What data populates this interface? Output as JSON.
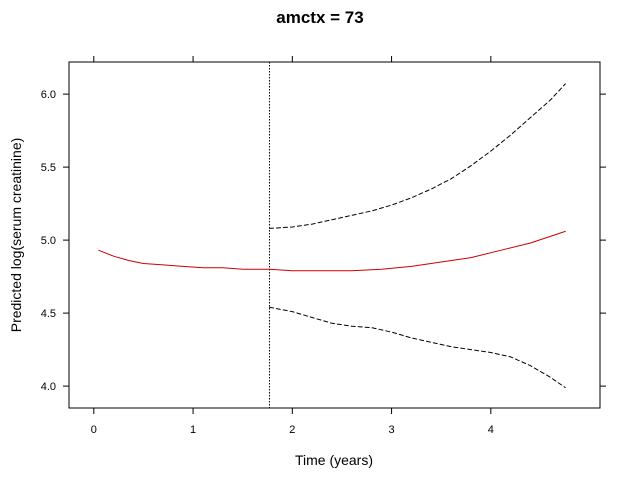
{
  "chart_data": {
    "type": "line",
    "title": "amctx = 73",
    "xlabel": "Time (years)",
    "ylabel": "Predicted log(serum creatinine)",
    "xlim": [
      -0.25,
      5.1
    ],
    "ylim": [
      3.85,
      6.22
    ],
    "x_ticks": [
      0,
      1,
      2,
      3,
      4
    ],
    "y_ticks": [
      4.0,
      4.5,
      5.0,
      5.5,
      6.0
    ],
    "x_tick_labels": [
      "0",
      "1",
      "2",
      "3",
      "4"
    ],
    "y_tick_labels": [
      "4.0",
      "4.5",
      "5.0",
      "5.5",
      "6.0"
    ],
    "grid": false,
    "vertical_reference_line": {
      "x": 1.77,
      "style": "dotted",
      "color": "#000000"
    },
    "series": [
      {
        "role": "prediction",
        "color": "#cc0000",
        "dash": "solid",
        "x": [
          0.05,
          0.2,
          0.35,
          0.5,
          0.7,
          0.9,
          1.1,
          1.3,
          1.5,
          1.77,
          2.0,
          2.3,
          2.6,
          2.9,
          3.2,
          3.5,
          3.8,
          4.1,
          4.4,
          4.75
        ],
        "y": [
          4.93,
          4.89,
          4.86,
          4.84,
          4.83,
          4.82,
          4.81,
          4.81,
          4.8,
          4.8,
          4.79,
          4.79,
          4.79,
          4.8,
          4.82,
          4.85,
          4.88,
          4.93,
          4.98,
          5.06
        ]
      },
      {
        "role": "upper-bound",
        "color": "#000000",
        "dash": "dashed",
        "x": [
          1.77,
          2.0,
          2.2,
          2.4,
          2.6,
          2.8,
          3.0,
          3.2,
          3.4,
          3.6,
          3.8,
          4.0,
          4.2,
          4.4,
          4.6,
          4.75
        ],
        "y": [
          5.08,
          5.09,
          5.11,
          5.14,
          5.17,
          5.2,
          5.24,
          5.29,
          5.35,
          5.42,
          5.51,
          5.61,
          5.72,
          5.84,
          5.96,
          6.07
        ]
      },
      {
        "role": "lower-bound",
        "color": "#000000",
        "dash": "dashed",
        "x": [
          1.77,
          2.0,
          2.2,
          2.4,
          2.6,
          2.8,
          3.0,
          3.2,
          3.4,
          3.6,
          3.8,
          4.0,
          4.2,
          4.4,
          4.6,
          4.75
        ],
        "y": [
          4.54,
          4.51,
          4.47,
          4.43,
          4.41,
          4.4,
          4.37,
          4.33,
          4.3,
          4.27,
          4.25,
          4.23,
          4.2,
          4.14,
          4.06,
          3.99
        ]
      }
    ]
  }
}
